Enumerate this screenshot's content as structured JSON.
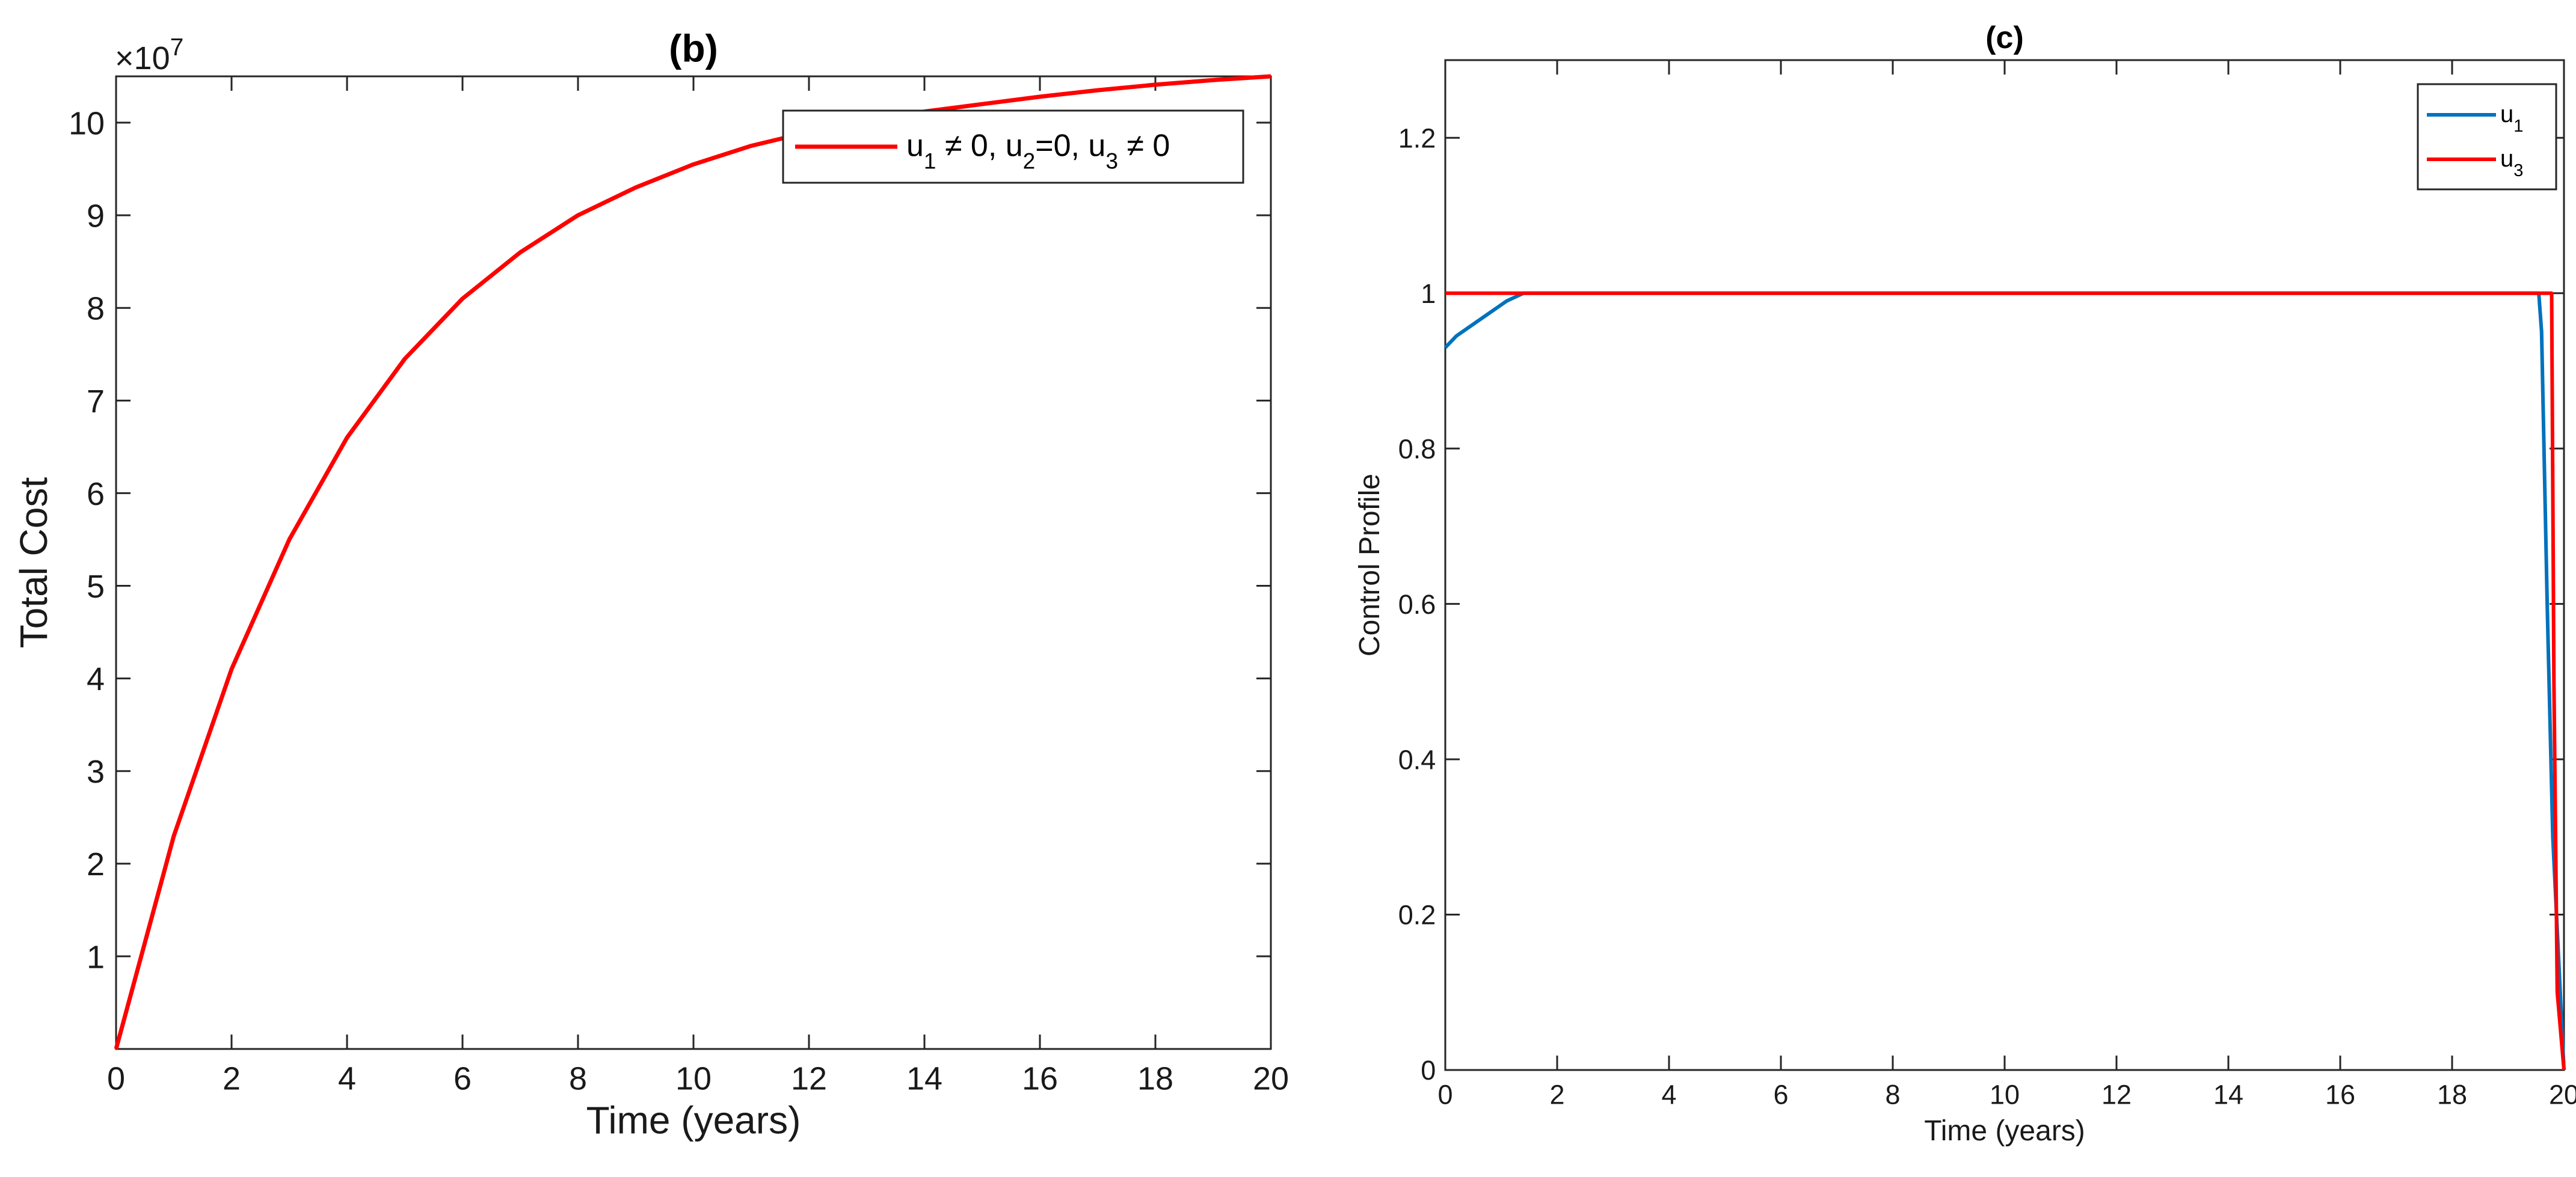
{
  "chart_data": [
    {
      "type": "line",
      "title": "(b)",
      "xlabel": "Time (years)",
      "ylabel": "Total Cost",
      "y_exponent": "7",
      "xlim": [
        0,
        20
      ],
      "ylim": [
        0,
        10.5
      ],
      "xticks": [
        0,
        2,
        4,
        6,
        8,
        10,
        12,
        14,
        16,
        18,
        20
      ],
      "yticks": [
        1,
        2,
        3,
        4,
        5,
        6,
        7,
        8,
        9,
        10
      ],
      "grid": false,
      "legend_position": "top-right",
      "series": [
        {
          "name": "u1 ≠ 0, u2 =0, u3 ≠ 0",
          "legend_parts": [
            {
              "t": "u"
            },
            {
              "t": "1",
              "sub": true
            },
            {
              "t": " ≠ 0, u"
            },
            {
              "t": "2",
              "sub": true
            },
            {
              "t": "=0, u"
            },
            {
              "t": "3",
              "sub": true
            },
            {
              "t": " ≠ 0"
            }
          ],
          "color": "#ff0000",
          "x": [
            0,
            1,
            2,
            3,
            4,
            5,
            6,
            7,
            8,
            9,
            10,
            11,
            12,
            13,
            14,
            15,
            16,
            17,
            18,
            19,
            20
          ],
          "y": [
            0,
            2.3,
            4.1,
            5.5,
            6.6,
            7.45,
            8.1,
            8.6,
            9.0,
            9.3,
            9.55,
            9.75,
            9.9,
            10.02,
            10.12,
            10.2,
            10.28,
            10.35,
            10.41,
            10.46,
            10.5
          ]
        }
      ]
    },
    {
      "type": "line",
      "title": "(c)",
      "xlabel": "Time (years)",
      "ylabel": "Control Profile",
      "xlim": [
        0,
        20
      ],
      "ylim": [
        0,
        1.3
      ],
      "xticks": [
        0,
        2,
        4,
        6,
        8,
        10,
        12,
        14,
        16,
        18,
        20
      ],
      "yticks": [
        0,
        0.2,
        0.4,
        0.6,
        0.8,
        1,
        1.2
      ],
      "ytick_labels": [
        "0",
        "0.2",
        "0.4",
        "0.6",
        "0.8",
        "1",
        "1.2"
      ],
      "grid": false,
      "legend_position": "top-right",
      "series": [
        {
          "name": "u1",
          "legend_parts": [
            {
              "t": "u"
            },
            {
              "t": "1",
              "sub": true
            }
          ],
          "color": "#0072bd",
          "x": [
            0,
            0.2,
            0.5,
            0.8,
            1.1,
            1.4,
            19.55,
            19.6,
            19.7,
            19.8,
            19.9,
            20
          ],
          "y": [
            0.93,
            0.945,
            0.96,
            0.975,
            0.99,
            1.0,
            1.0,
            0.95,
            0.6,
            0.3,
            0.15,
            0.0
          ]
        },
        {
          "name": "u3",
          "legend_parts": [
            {
              "t": "u"
            },
            {
              "t": "3",
              "sub": true
            }
          ],
          "color": "#ff0000",
          "x": [
            0,
            19.78,
            19.82,
            19.88,
            20
          ],
          "y": [
            1.0,
            1.0,
            0.5,
            0.1,
            0.0
          ]
        }
      ]
    }
  ]
}
